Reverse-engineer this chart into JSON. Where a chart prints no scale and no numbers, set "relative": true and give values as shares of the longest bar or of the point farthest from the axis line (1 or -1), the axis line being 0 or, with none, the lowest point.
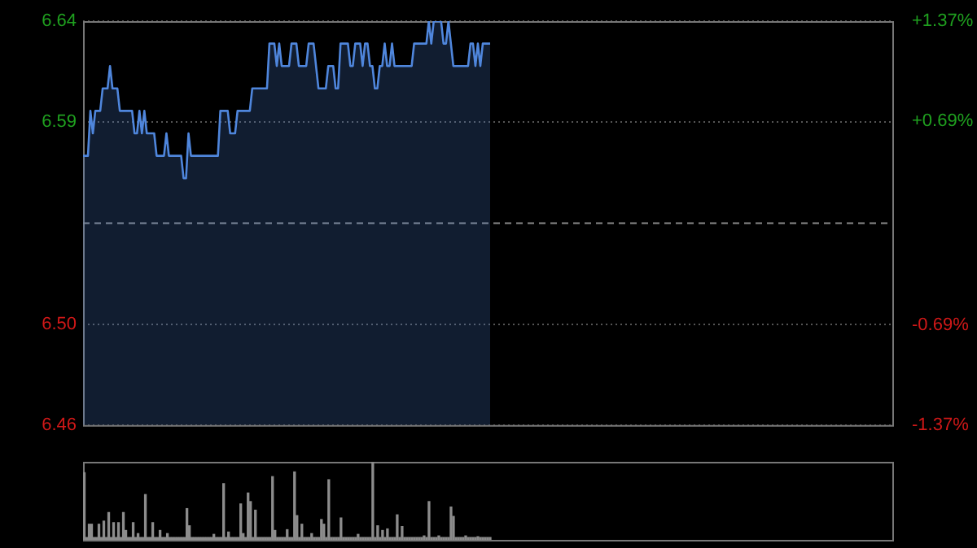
{
  "chart_data": [
    {
      "type": "area",
      "categories": [
        null,
        null,
        null,
        null,
        null,
        null,
        null,
        null,
        null,
        null,
        null,
        null,
        null,
        null,
        null,
        null,
        null,
        null,
        null,
        null,
        null,
        null,
        null,
        null,
        null,
        null,
        null,
        null,
        null,
        null,
        null,
        null,
        null,
        null,
        null,
        null,
        null,
        null,
        null,
        null,
        null,
        null,
        null,
        null,
        null,
        null,
        null,
        null,
        null,
        null,
        null,
        null,
        null,
        null,
        null,
        null,
        null,
        null,
        null,
        null,
        null,
        null,
        null,
        null,
        null,
        null,
        null,
        null,
        null,
        null,
        null,
        null,
        null,
        null,
        null,
        null,
        null,
        null,
        null,
        null,
        null,
        null,
        null,
        null,
        null,
        null,
        null,
        null,
        null,
        null,
        null,
        null,
        null,
        null,
        null,
        null,
        null,
        null,
        null,
        null,
        null,
        null,
        null,
        null,
        null,
        null,
        null,
        null,
        null,
        null,
        null,
        null,
        null,
        null,
        null,
        null,
        null,
        null,
        null,
        null,
        null,
        null,
        null,
        null,
        null,
        null,
        null,
        null,
        null,
        null,
        null,
        null,
        null,
        null,
        null,
        null,
        null,
        null,
        null,
        null,
        null,
        null,
        null,
        null,
        null,
        null,
        null,
        null,
        null,
        null,
        null,
        null,
        null,
        null,
        null,
        null,
        null,
        null,
        null,
        null,
        null,
        null,
        null,
        null,
        null,
        null,
        null,
        null,
        null,
        null,
        null,
        null,
        null,
        null,
        null,
        null,
        null,
        null,
        null,
        null,
        null,
        null,
        null,
        null,
        null,
        null,
        null,
        null,
        null,
        null,
        null,
        null,
        null,
        null,
        null,
        null,
        null,
        null,
        null,
        null,
        null,
        null,
        null,
        null,
        null,
        null,
        null,
        null,
        null,
        null,
        null,
        null,
        null,
        null,
        null,
        null,
        null,
        null,
        null,
        null,
        null,
        null,
        null,
        null,
        null,
        null,
        null,
        null,
        null,
        null,
        null,
        null,
        null,
        null,
        null,
        null,
        null,
        null,
        null,
        null,
        null,
        null,
        null,
        null,
        null,
        null,
        null,
        null,
        null,
        null,
        null,
        null,
        null,
        null,
        null,
        null,
        null,
        null,
        null,
        null,
        null,
        null,
        null,
        null,
        null,
        null,
        null,
        null,
        null,
        null,
        null,
        null,
        null,
        null,
        null,
        null,
        null,
        null,
        null,
        null,
        null,
        null,
        null,
        null,
        null,
        null,
        null,
        null,
        null,
        null,
        null,
        null,
        null,
        null,
        null,
        null,
        null,
        null,
        null,
        null,
        null,
        null,
        null,
        null,
        null,
        null,
        null,
        null,
        null,
        null,
        null,
        null,
        null,
        null,
        null,
        null,
        null,
        null,
        null,
        null,
        null,
        null,
        null,
        null,
        null,
        null,
        null,
        null,
        null,
        null,
        null
      ],
      "series": [
        {
          "color": "#4f86dc",
          "values": [
            6.58,
            6.58,
            6.58,
            6.6,
            6.59,
            6.6,
            6.6,
            6.6,
            6.61,
            6.61,
            6.61,
            6.62,
            6.61,
            6.61,
            6.61,
            6.6,
            6.6,
            6.6,
            6.6,
            6.6,
            6.6,
            6.59,
            6.59,
            6.6,
            6.59,
            6.6,
            6.59,
            6.59,
            6.59,
            6.59,
            6.58,
            6.58,
            6.58,
            6.58,
            6.59,
            6.58,
            6.58,
            6.58,
            6.58,
            6.58,
            6.58,
            6.57,
            6.57,
            6.59,
            6.58,
            6.58,
            6.58,
            6.58,
            6.58,
            6.58,
            6.58,
            6.58,
            6.58,
            6.58,
            6.58,
            6.58,
            6.6,
            6.6,
            6.6,
            6.6,
            6.59,
            6.59,
            6.59,
            6.6,
            6.6,
            6.6,
            6.6,
            6.6,
            6.6,
            6.61,
            6.61,
            6.61,
            6.61,
            6.61,
            6.61,
            6.61,
            6.63,
            6.63,
            6.63,
            6.62,
            6.63,
            6.62,
            6.62,
            6.62,
            6.62,
            6.63,
            6.63,
            6.63,
            6.62,
            6.62,
            6.62,
            6.62,
            6.63,
            6.63,
            6.63,
            6.62,
            6.61,
            6.61,
            6.61,
            6.61,
            6.62,
            6.62,
            6.62,
            6.61,
            6.61,
            6.63,
            6.63,
            6.63,
            6.63,
            6.62,
            6.62,
            6.63,
            6.63,
            6.63,
            6.62,
            6.63,
            6.63,
            6.62,
            6.62,
            6.61,
            6.61,
            6.62,
            6.62,
            6.63,
            6.62,
            6.62,
            6.63,
            6.62,
            6.62,
            6.62,
            6.62,
            6.62,
            6.62,
            6.62,
            6.62,
            6.63,
            6.63,
            6.63,
            6.63,
            6.63,
            6.63,
            6.64,
            6.63,
            6.64,
            6.64,
            6.64,
            6.64,
            6.63,
            6.63,
            6.64,
            6.63,
            6.62,
            6.62,
            6.62,
            6.62,
            6.62,
            6.62,
            6.62,
            6.63,
            6.63,
            6.62,
            6.63,
            6.62,
            6.63,
            6.63,
            6.63,
            6.63,
            null,
            null,
            null,
            null,
            null,
            null,
            null,
            null,
            null,
            null,
            null,
            null,
            null,
            null,
            null,
            null,
            null,
            null,
            null,
            null,
            null,
            null,
            null,
            null,
            null,
            null,
            null,
            null,
            null,
            null,
            null,
            null,
            null,
            null,
            null,
            null,
            null,
            null,
            null,
            null,
            null,
            null,
            null,
            null,
            null,
            null,
            null,
            null,
            null,
            null,
            null,
            null,
            null,
            null,
            null,
            null,
            null,
            null,
            null,
            null,
            null,
            null,
            null,
            null,
            null,
            null,
            null,
            null,
            null,
            null,
            null,
            null,
            null,
            null,
            null,
            null,
            null,
            null,
            null,
            null,
            null,
            null,
            null,
            null,
            null,
            null,
            null,
            null,
            null,
            null,
            null,
            null,
            null,
            null,
            null,
            null,
            null,
            null,
            null,
            null,
            null,
            null,
            null,
            null,
            null,
            null,
            null,
            null,
            null,
            null,
            null,
            null,
            null,
            null,
            null,
            null,
            null,
            null,
            null,
            null,
            null,
            null,
            null,
            null,
            null,
            null,
            null,
            null,
            null,
            null,
            null,
            null,
            null,
            null,
            null,
            null,
            null,
            null,
            null,
            null,
            null,
            null,
            null,
            null,
            null,
            null,
            null,
            null,
            null,
            null,
            null,
            null,
            null,
            null,
            null,
            null,
            null,
            null,
            null,
            null,
            null,
            null,
            null,
            null
          ]
        }
      ],
      "ylim": [
        6.46,
        6.64
      ],
      "yticks": [
        {
          "value": 6.46,
          "label": "6.46"
        },
        {
          "value": 6.505,
          "label": "6.50"
        },
        {
          "value": 6.595,
          "label": "6.59"
        },
        {
          "value": 6.64,
          "label": "6.64"
        }
      ],
      "y2lim": [
        -1.37,
        1.37
      ],
      "y2ticks": [
        {
          "value": -1.37,
          "label": "-1.37%"
        },
        {
          "value": -0.69,
          "label": "-0.69%"
        },
        {
          "value": 0.69,
          "label": "+0.69%"
        },
        {
          "value": 1.37,
          "label": "+1.37%"
        }
      ],
      "ref_lines": [
        {
          "axis": "y",
          "value": 6.55,
          "line_style": "dashed"
        }
      ],
      "grid": "y",
      "legend": false
    },
    {
      "type": "bar",
      "relative": true,
      "categories": [
        null,
        null,
        null,
        null,
        null,
        null,
        null,
        null,
        null,
        null,
        null,
        null,
        null,
        null,
        null,
        null,
        null,
        null,
        null,
        null,
        null,
        null,
        null,
        null,
        null,
        null,
        null,
        null,
        null,
        null,
        null,
        null,
        null,
        null,
        null,
        null,
        null,
        null,
        null,
        null,
        null,
        null,
        null,
        null,
        null,
        null,
        null,
        null,
        null,
        null,
        null,
        null,
        null,
        null,
        null,
        null,
        null,
        null,
        null,
        null,
        null,
        null,
        null,
        null,
        null,
        null,
        null,
        null,
        null,
        null,
        null,
        null,
        null,
        null,
        null,
        null,
        null,
        null,
        null,
        null,
        null,
        null,
        null,
        null,
        null,
        null,
        null,
        null,
        null,
        null,
        null,
        null,
        null,
        null,
        null,
        null,
        null,
        null,
        null,
        null,
        null,
        null,
        null,
        null,
        null,
        null,
        null,
        null,
        null,
        null,
        null,
        null,
        null,
        null,
        null,
        null,
        null,
        null,
        null,
        null,
        null,
        null,
        null,
        null,
        null,
        null,
        null,
        null,
        null,
        null,
        null,
        null,
        null,
        null,
        null,
        null,
        null,
        null,
        null,
        null,
        null,
        null,
        null,
        null,
        null,
        null,
        null,
        null,
        null,
        null,
        null,
        null,
        null,
        null,
        null,
        null,
        null,
        null,
        null,
        null,
        null,
        null,
        null,
        null,
        null,
        null,
        null,
        null,
        null,
        null,
        null,
        null,
        null,
        null,
        null,
        null,
        null,
        null,
        null,
        null,
        null,
        null,
        null,
        null,
        null,
        null,
        null,
        null,
        null,
        null,
        null,
        null,
        null,
        null,
        null,
        null,
        null,
        null,
        null,
        null,
        null,
        null,
        null,
        null,
        null,
        null,
        null,
        null,
        null,
        null,
        null,
        null,
        null,
        null,
        null,
        null,
        null,
        null,
        null,
        null,
        null,
        null,
        null,
        null,
        null,
        null,
        null,
        null,
        null,
        null,
        null,
        null,
        null,
        null,
        null,
        null,
        null,
        null,
        null,
        null,
        null,
        null,
        null,
        null,
        null,
        null,
        null,
        null,
        null,
        null,
        null,
        null,
        null,
        null,
        null,
        null,
        null,
        null,
        null,
        null,
        null,
        null,
        null,
        null,
        null,
        null,
        null,
        null,
        null,
        null,
        null,
        null,
        null,
        null,
        null,
        null,
        null,
        null,
        null,
        null,
        null,
        null,
        null,
        null,
        null,
        null,
        null,
        null,
        null,
        null,
        null,
        null,
        null,
        null,
        null,
        null,
        null,
        null,
        null,
        null,
        null,
        null,
        null,
        null,
        null,
        null,
        null,
        null,
        null,
        null,
        null,
        null,
        null,
        null,
        null,
        null,
        null,
        null,
        null,
        null,
        null,
        null,
        null,
        null,
        null,
        null,
        null,
        null,
        null,
        null,
        null
      ],
      "series": [
        {
          "color": "#8c8c8c",
          "values": [
            0.86,
            0.03,
            0.2,
            0.2,
            0.03,
            0.03,
            0.2,
            0.03,
            0.24,
            0.03,
            0.35,
            0.03,
            0.22,
            0.03,
            0.22,
            0.03,
            0.35,
            0.12,
            0.03,
            0.03,
            0.22,
            0.03,
            0.08,
            0.03,
            0.03,
            0.58,
            0.03,
            0.03,
            0.22,
            0.03,
            0.03,
            0.12,
            0.03,
            0.03,
            0.08,
            0.03,
            0.03,
            0.03,
            0.03,
            0.03,
            0.03,
            0.03,
            0.4,
            0.18,
            0.03,
            0.03,
            0.03,
            0.03,
            0.03,
            0.03,
            0.03,
            0.03,
            0.03,
            0.07,
            0.03,
            0.03,
            0.03,
            0.72,
            0.03,
            0.1,
            0.03,
            0.03,
            0.03,
            0.03,
            0.46,
            0.08,
            0.03,
            0.6,
            0.49,
            0.03,
            0.38,
            0.03,
            0.03,
            0.03,
            0.03,
            0.03,
            0.03,
            0.81,
            0.12,
            0.03,
            0.03,
            0.03,
            0.03,
            0.13,
            0.03,
            0.03,
            0.87,
            0.31,
            0.03,
            0.2,
            0.03,
            0.03,
            0.03,
            0.08,
            0.03,
            0.03,
            0.03,
            0.26,
            0.2,
            0.03,
            0.77,
            0.03,
            0.03,
            0.03,
            0.03,
            0.28,
            0.03,
            0.03,
            0.03,
            0.03,
            0.03,
            0.03,
            0.07,
            0.03,
            0.03,
            0.03,
            0.03,
            0.03,
            1,
            0.03,
            0.18,
            0.03,
            0.12,
            0.03,
            0.14,
            0.03,
            0.03,
            0.03,
            0.32,
            0.03,
            0.17,
            0.03,
            0.03,
            0.03,
            0.03,
            0.03,
            0.03,
            0.03,
            0.03,
            0.05,
            0.03,
            0.49,
            0.03,
            0.03,
            0.03,
            0.05,
            0.03,
            0.03,
            0.03,
            0.03,
            0.42,
            0.3,
            0.03,
            0.03,
            0.03,
            0.03,
            0.05,
            0.03,
            0.03,
            0.03,
            0.03,
            0.04,
            0.03,
            0.03,
            0.03,
            0.03,
            0.03,
            null,
            null,
            null,
            null,
            null,
            null,
            null,
            null,
            null,
            null,
            null,
            null,
            null,
            null,
            null,
            null,
            null,
            null,
            null,
            null,
            null,
            null,
            null,
            null,
            null,
            null,
            null,
            null,
            null,
            null,
            null,
            null,
            null,
            null,
            null,
            null,
            null,
            null,
            null,
            null,
            null,
            null,
            null,
            null,
            null,
            null,
            null,
            null,
            null,
            null,
            null,
            null,
            null,
            null,
            null,
            null,
            null,
            null,
            null,
            null,
            null,
            null,
            null,
            null,
            null,
            null,
            null,
            null,
            null,
            null,
            null,
            null,
            null,
            null,
            null,
            null,
            null,
            null,
            null,
            null,
            null,
            null,
            null,
            null,
            null,
            null,
            null,
            null,
            null,
            null,
            null,
            null,
            null,
            null,
            null,
            null,
            null,
            null,
            null,
            null,
            null,
            null,
            null,
            null,
            null,
            null,
            null,
            null,
            null,
            null,
            null,
            null,
            null,
            null,
            null,
            null,
            null,
            null,
            null,
            null,
            null,
            null,
            null,
            null,
            null,
            null,
            null,
            null,
            null,
            null,
            null,
            null,
            null,
            null,
            null,
            null,
            null,
            null,
            null,
            null,
            null,
            null,
            null,
            null,
            null,
            null,
            null,
            null,
            null,
            null,
            null,
            null,
            null,
            null,
            null,
            null,
            null,
            null,
            null,
            null,
            null,
            null,
            null,
            null
          ]
        }
      ],
      "legend": false
    }
  ]
}
